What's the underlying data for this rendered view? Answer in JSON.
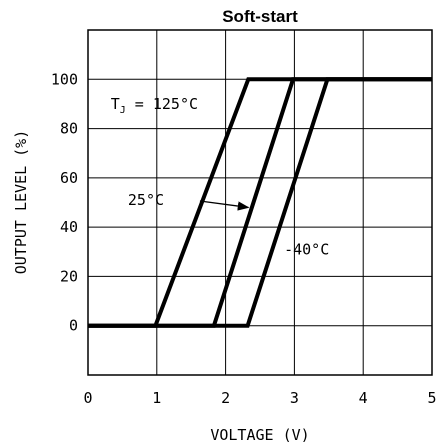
{
  "chart_data": {
    "type": "line",
    "title": "Soft-start",
    "xlabel": "VOLTAGE (V)",
    "ylabel": "OUTPUT LEVEL (%)",
    "xlim": [
      0,
      5
    ],
    "ylim": [
      -20,
      120
    ],
    "x_ticks": [
      0,
      1,
      2,
      3,
      4,
      5
    ],
    "x_tick_labels": [
      "0",
      "1",
      "2",
      "3",
      "4",
      "5"
    ],
    "y_ticks": [
      0,
      20,
      40,
      60,
      80,
      100
    ],
    "y_tick_labels": [
      "0",
      "20",
      "40",
      "60",
      "80",
      "100"
    ],
    "grid": true,
    "line_color": "#000000",
    "series": [
      {
        "name": "125°C",
        "points": [
          [
            0,
            0
          ],
          [
            0.98,
            0
          ],
          [
            2.33,
            100
          ],
          [
            5,
            100
          ]
        ]
      },
      {
        "name": "25°C",
        "points": [
          [
            0,
            0
          ],
          [
            1.83,
            0
          ],
          [
            2.98,
            100
          ],
          [
            5,
            100
          ]
        ]
      },
      {
        "name": "-40°C",
        "points": [
          [
            0,
            0
          ],
          [
            2.32,
            0
          ],
          [
            3.48,
            100
          ],
          [
            5,
            100
          ]
        ]
      }
    ],
    "annotations": [
      {
        "label": "T",
        "subscript": "J",
        "suffix": " = 125°C",
        "x": 0.33,
        "y": 88
      },
      {
        "label": "25°C",
        "x": 0.58,
        "y": 49,
        "arrow_to": [
          2.33,
          48
        ]
      },
      {
        "label": "-40°C",
        "x": 2.85,
        "y": 29
      }
    ]
  }
}
